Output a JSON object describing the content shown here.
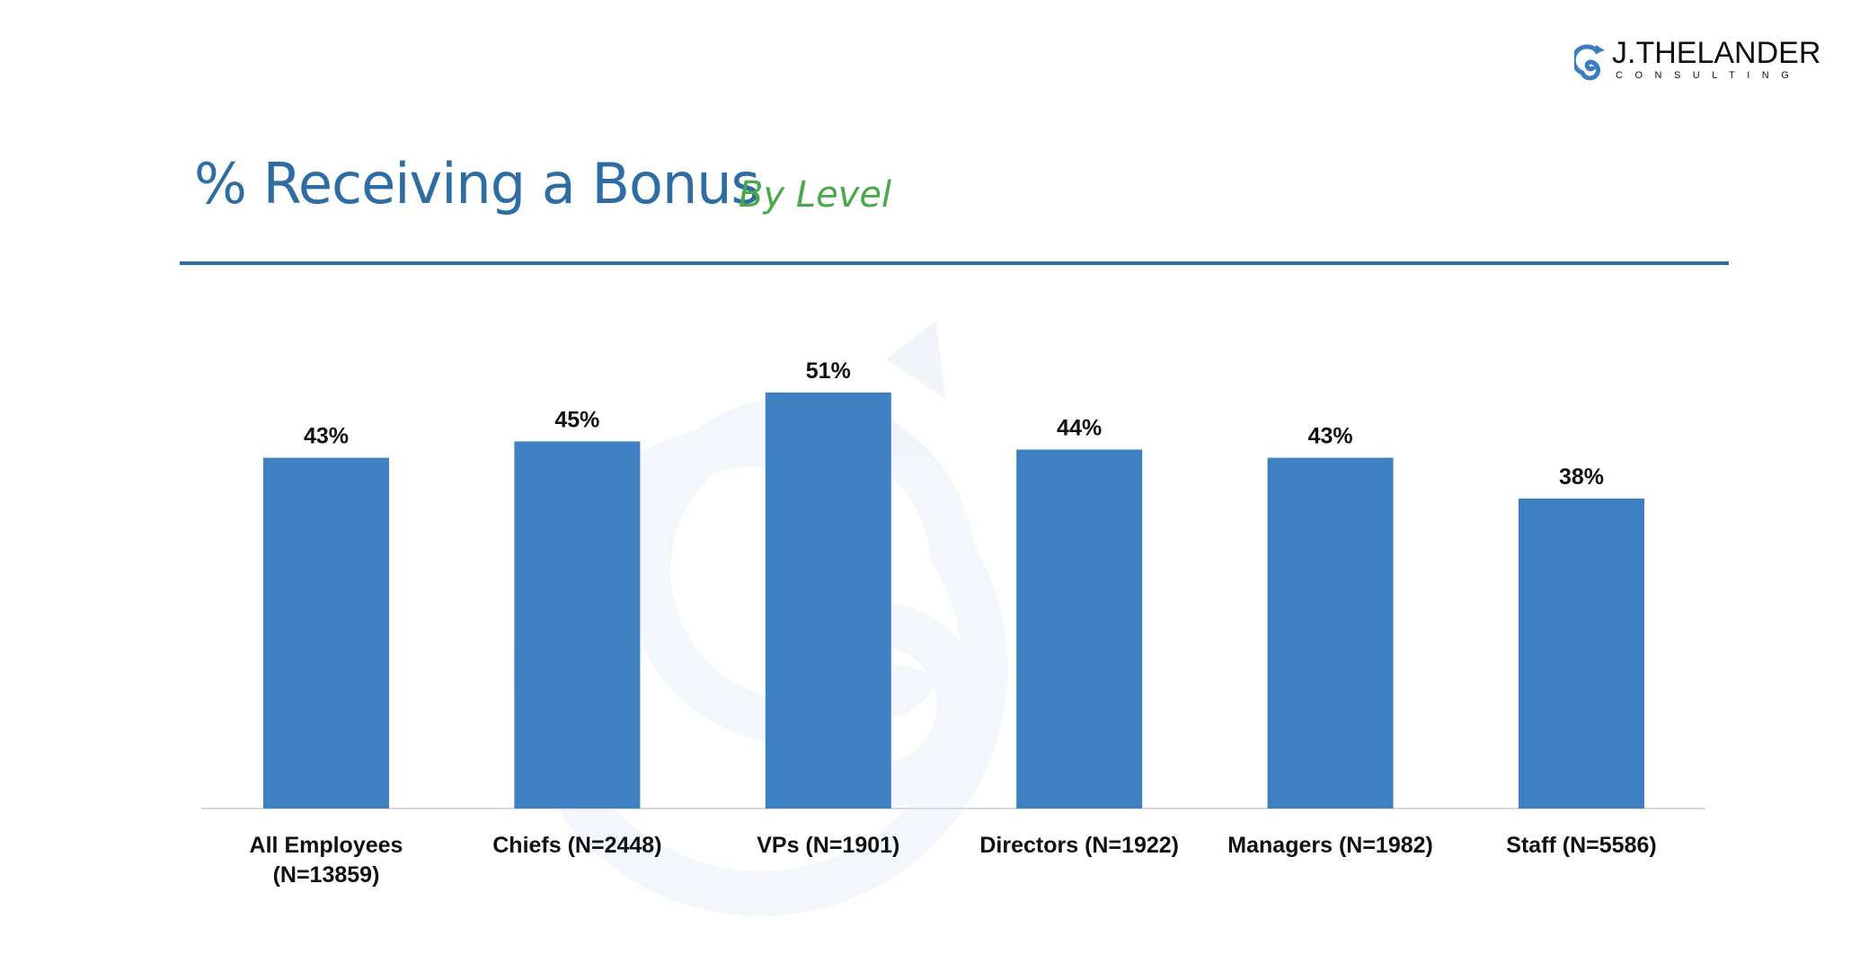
{
  "header": {
    "title": "% Receiving a Bonus",
    "subtitle": "By Level"
  },
  "logo": {
    "name": "J.THELANDER",
    "tagline": "CONSULTING"
  },
  "colors": {
    "bar": "#3a7dc0",
    "title": "#2e6da4",
    "subtitle": "#4aa84a"
  },
  "chart_data": {
    "type": "bar",
    "title": "% Receiving a Bonus",
    "subtitle": "By Level",
    "categories": [
      [
        "All Employees",
        "(N=13859)"
      ],
      [
        "Chiefs (N=2448)"
      ],
      [
        "VPs (N=1901)"
      ],
      [
        "Directors (N=1922)"
      ],
      [
        "Managers (N=1982)"
      ],
      [
        "Staff (N=5586)"
      ]
    ],
    "values": [
      43,
      45,
      51,
      44,
      43,
      38
    ],
    "data_labels": [
      "43%",
      "45%",
      "51%",
      "44%",
      "43%",
      "38%"
    ],
    "ylim": [
      0,
      100
    ],
    "grid": false,
    "legend": "none"
  }
}
